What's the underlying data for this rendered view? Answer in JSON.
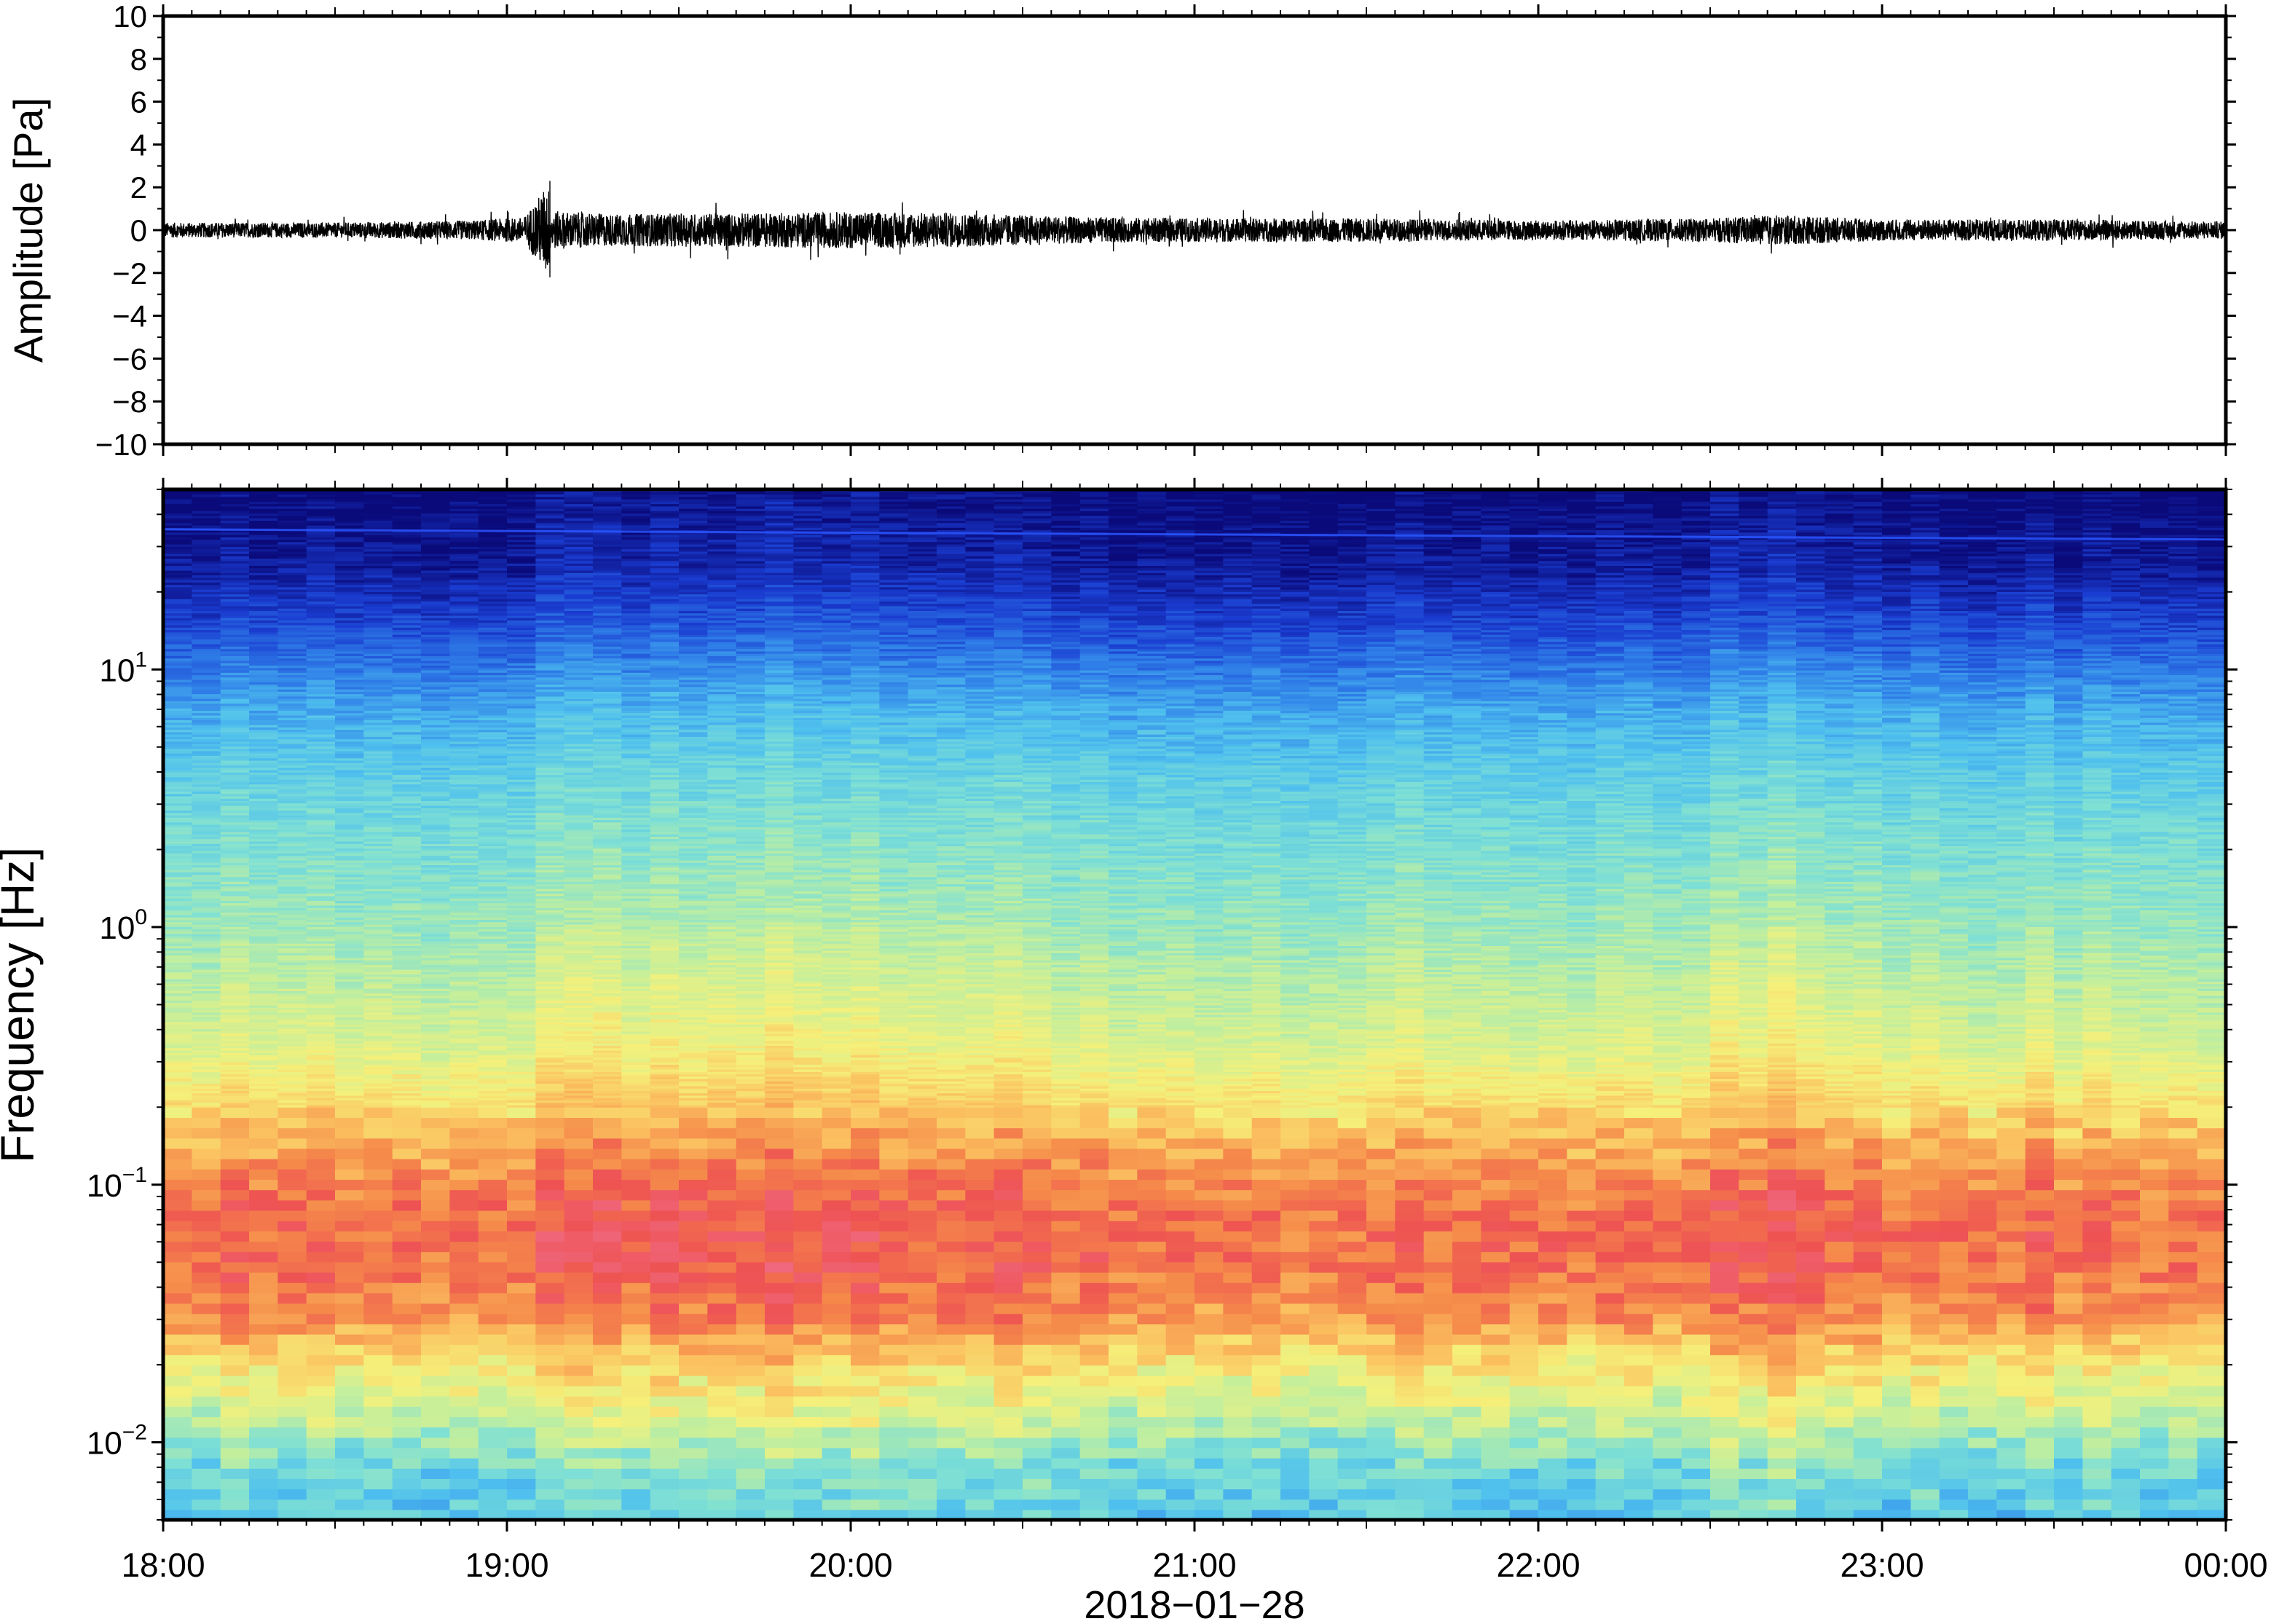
{
  "chart_data": [
    {
      "type": "line",
      "title": "",
      "xlabel": "",
      "ylabel": "Amplitude [Pa]",
      "ylim": [
        -10,
        10
      ],
      "y_ticks": [
        "10",
        "8",
        "6",
        "4",
        "2",
        "0",
        "−2",
        "−4",
        "−6",
        "−8",
        "−10"
      ],
      "y_tick_values": [
        10,
        8,
        6,
        4,
        2,
        0,
        -2,
        -4,
        -6,
        -8,
        -10
      ],
      "x_range_hours": [
        18,
        24
      ],
      "series": [
        {
          "name": "",
          "color": "#000000",
          "envelope": {
            "hours": [
              18.0,
              18.5,
              18.9,
              19.05,
              19.12,
              19.13,
              19.3,
              19.7,
              20.0,
              20.3,
              20.7,
              21.0,
              21.5,
              22.0,
              22.5,
              22.7,
              23.0,
              23.5,
              24.0
            ],
            "amp": [
              0.35,
              0.35,
              0.45,
              0.6,
              2.2,
              0.9,
              0.75,
              0.8,
              0.85,
              0.8,
              0.6,
              0.55,
              0.55,
              0.45,
              0.55,
              0.7,
              0.5,
              0.5,
              0.4
            ]
          }
        }
      ]
    },
    {
      "type": "heatmap",
      "title": "",
      "xlabel": "2018−01−28",
      "ylabel": "Frequency [Hz]",
      "y_scale": "log",
      "ylim": [
        0.005,
        50
      ],
      "y_ticks": [
        {
          "base": "10",
          "exp": "1",
          "value": 10
        },
        {
          "base": "10",
          "exp": "0",
          "value": 1
        },
        {
          "base": "10",
          "exp": "−1",
          "value": 0.1
        },
        {
          "base": "10",
          "exp": "−2",
          "value": 0.01
        }
      ],
      "x_ticks": [
        "18:00",
        "19:00",
        "20:00",
        "21:00",
        "22:00",
        "23:00",
        "00:00"
      ],
      "x_range_hours": [
        18,
        24
      ],
      "colormap": [
        "#0a0a7a",
        "#1a3cd0",
        "#2f7ee8",
        "#4fc0ee",
        "#7fe0d4",
        "#c4ef9c",
        "#f5f07a",
        "#fbc060",
        "#f58a4a",
        "#ee5252",
        "#f06a82"
      ],
      "spectrum_profile": {
        "freqs_hz": [
          0.005,
          0.008,
          0.012,
          0.02,
          0.03,
          0.05,
          0.08,
          0.12,
          0.2,
          0.35,
          0.6,
          1,
          2,
          4,
          7,
          10,
          15,
          25,
          50
        ],
        "levels": [
          0.33,
          0.38,
          0.5,
          0.62,
          0.78,
          0.86,
          0.85,
          0.78,
          0.65,
          0.55,
          0.5,
          0.45,
          0.4,
          0.34,
          0.27,
          0.2,
          0.12,
          0.04,
          0.0
        ]
      },
      "narrowband_line_hz": 35
    }
  ]
}
